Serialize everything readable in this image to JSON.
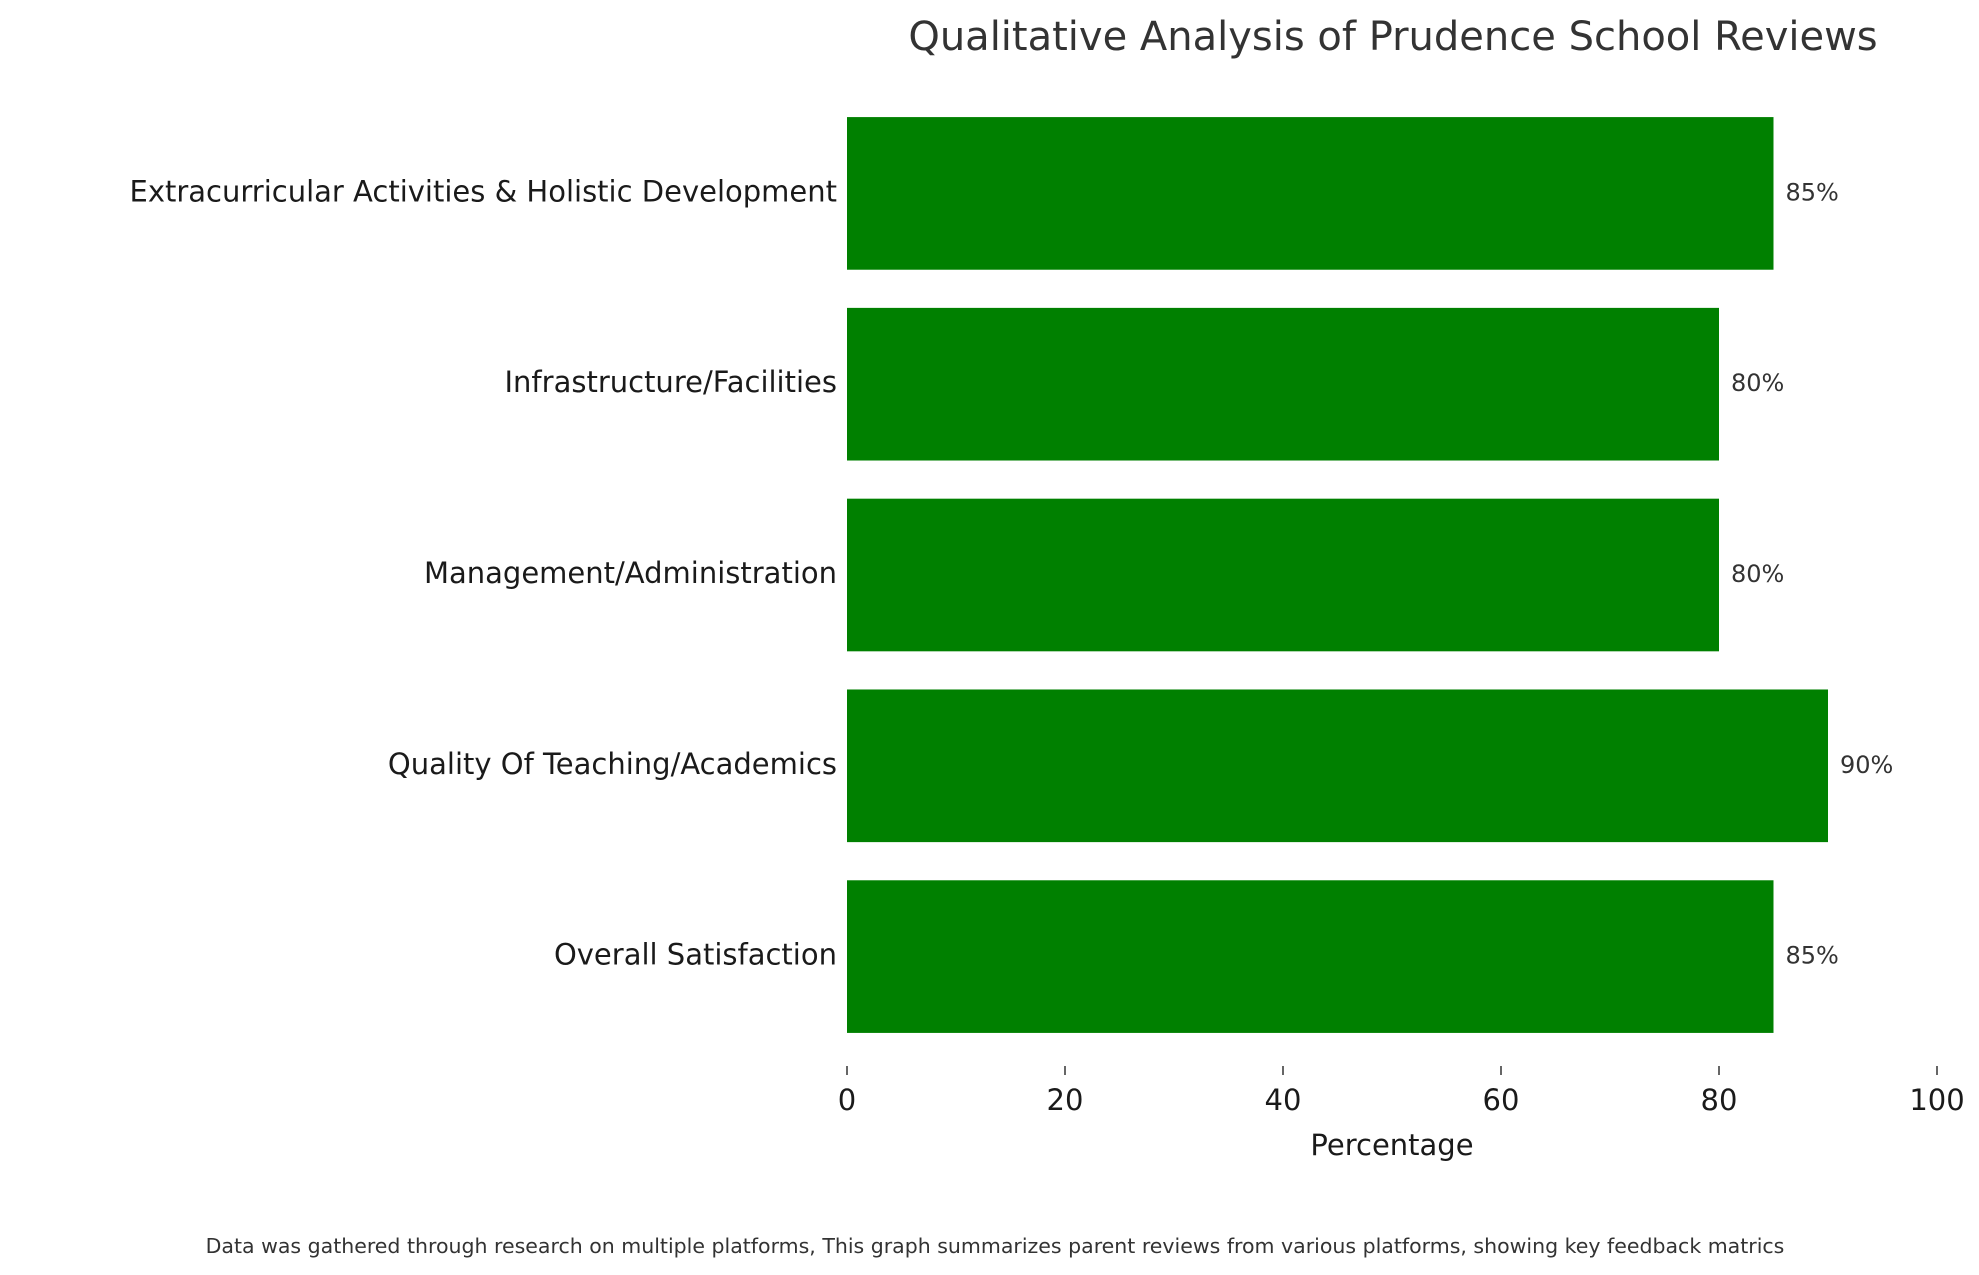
{
  "chart_data": {
    "type": "bar",
    "orientation": "horizontal",
    "title": "Qualitative Analysis of Prudence School Reviews",
    "categories": [
      "Overall Satisfaction",
      "Quality Of Teaching/Academics",
      "Management/Administration",
      "Infrastructure/Facilities",
      "Extracurricular Activities & Holistic Development"
    ],
    "values": [
      85,
      90,
      80,
      80,
      85
    ],
    "value_labels": [
      "85%",
      "90%",
      "80%",
      "80%",
      "85%"
    ],
    "color": "#008000",
    "xlabel": "Percentage",
    "xlim": [
      0,
      100
    ],
    "xticks": [
      0,
      20,
      40,
      60,
      80,
      100
    ],
    "grid": false,
    "footnote": "Data was gathered through research on multiple platforms, This graph summarizes parent reviews from various platforms, showing key feedback matrics"
  }
}
